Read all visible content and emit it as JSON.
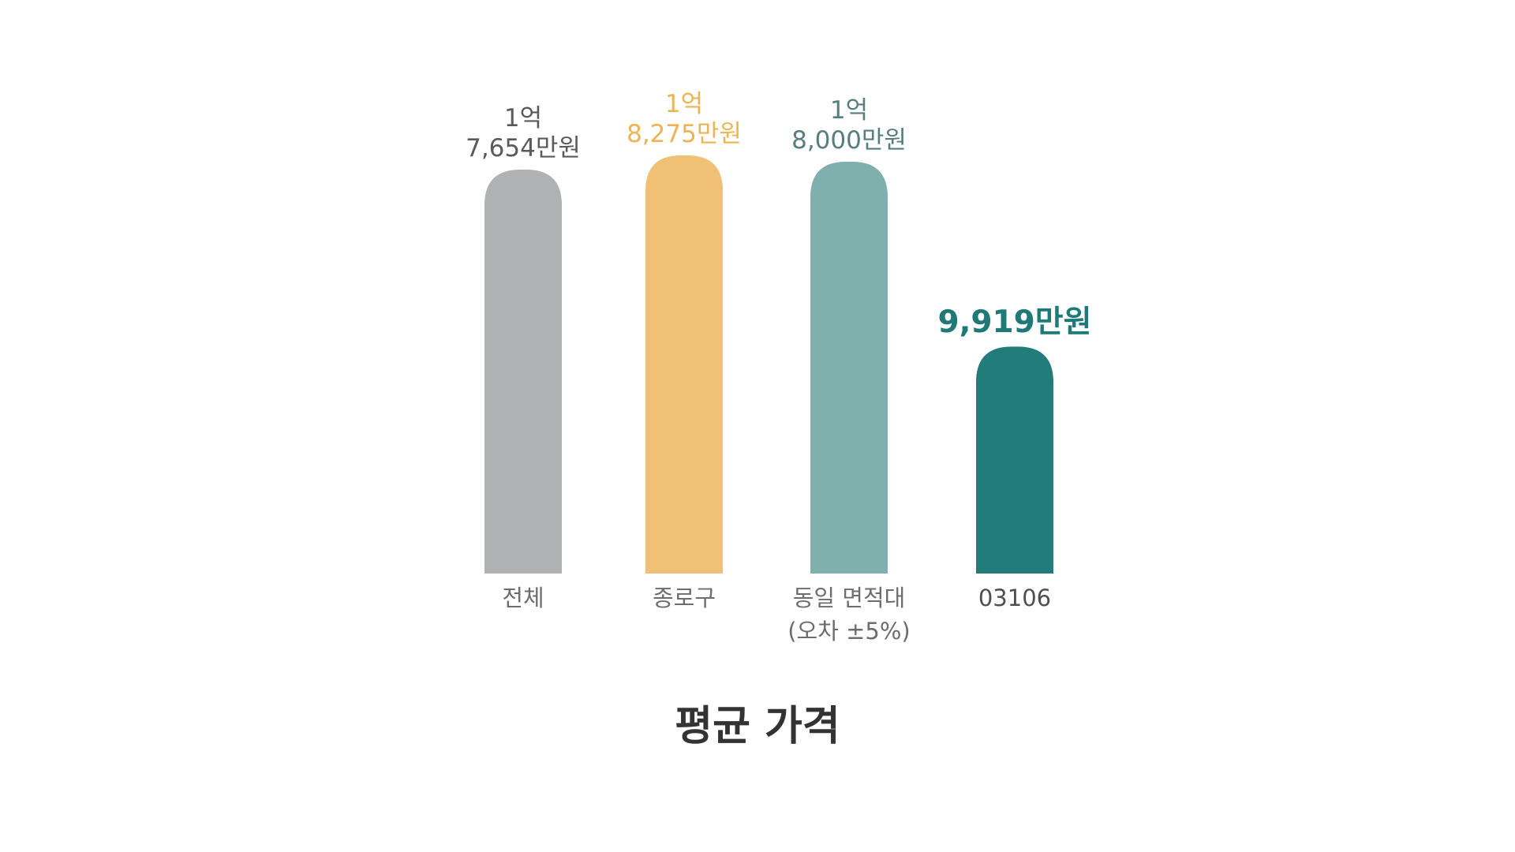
{
  "chart_data": {
    "type": "bar",
    "title": "평균 가격",
    "xlabel": "",
    "ylabel": "",
    "ylim": [
      0,
      18275
    ],
    "grid": false,
    "categories": [
      "전체",
      "종로구",
      "동일 면적대 (오차 ±5%)",
      "03106"
    ],
    "category_lines": [
      [
        "전체"
      ],
      [
        "종로구"
      ],
      [
        "동일 면적대",
        "(오차 ±5%)"
      ],
      [
        "03106"
      ]
    ],
    "values": [
      17654,
      18275,
      18000,
      9919
    ],
    "data_labels": [
      [
        "1억",
        "7,654만원"
      ],
      [
        "1억",
        "8,275만원"
      ],
      [
        "1억",
        "8,000만원"
      ],
      [
        "9,919만원"
      ]
    ],
    "colors": [
      "#b0b1b3",
      "#f0c074",
      "#7fb0ae",
      "#227c79"
    ],
    "label_colors": [
      "#5a5a5a",
      "#edb455",
      "#567e7c",
      "#1f7a77"
    ],
    "highlight_index": 3
  }
}
